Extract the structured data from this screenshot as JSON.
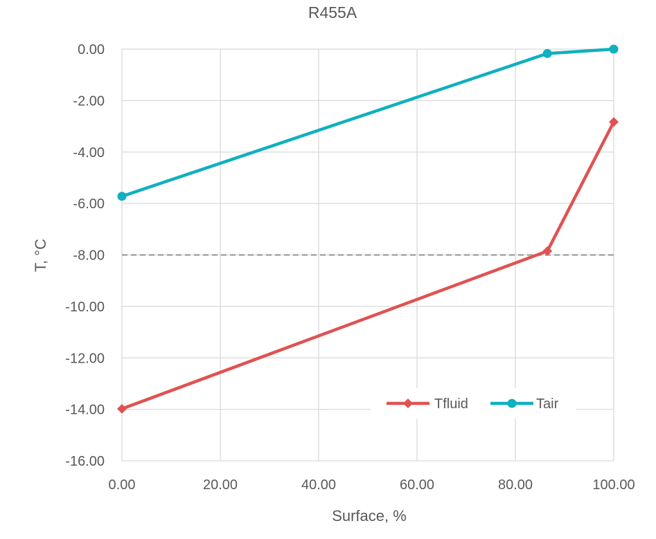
{
  "chart_data": {
    "type": "line",
    "title": "R455A",
    "xlabel": "Surface, %",
    "ylabel": "T, °C",
    "xlim": [
      0,
      100
    ],
    "ylim": [
      -16,
      0
    ],
    "x_ticks": [
      "0.00",
      "20.00",
      "40.00",
      "60.00",
      "80.00",
      "100.00"
    ],
    "y_ticks": [
      "0.00",
      "-2.00",
      "-4.00",
      "-6.00",
      "-8.00",
      "-10.00",
      "-12.00",
      "-14.00",
      "-16.00"
    ],
    "grid": true,
    "legend": "bottom-right",
    "series": [
      {
        "name": "Tfluid",
        "color": "#e05252",
        "marker": "diamond",
        "points": [
          {
            "x": 0,
            "y": -13.98
          },
          {
            "x": 86.5,
            "y": -7.85
          },
          {
            "x": 100,
            "y": -2.83
          }
        ]
      },
      {
        "name": "Tair",
        "color": "#0fb0c0",
        "marker": "circle",
        "points": [
          {
            "x": 0,
            "y": -5.72
          },
          {
            "x": 86.5,
            "y": -0.17
          },
          {
            "x": 100,
            "y": 0
          }
        ]
      }
    ],
    "reference_line": {
      "y": -8,
      "style": "dashed",
      "color": "#a6a6a6"
    }
  }
}
